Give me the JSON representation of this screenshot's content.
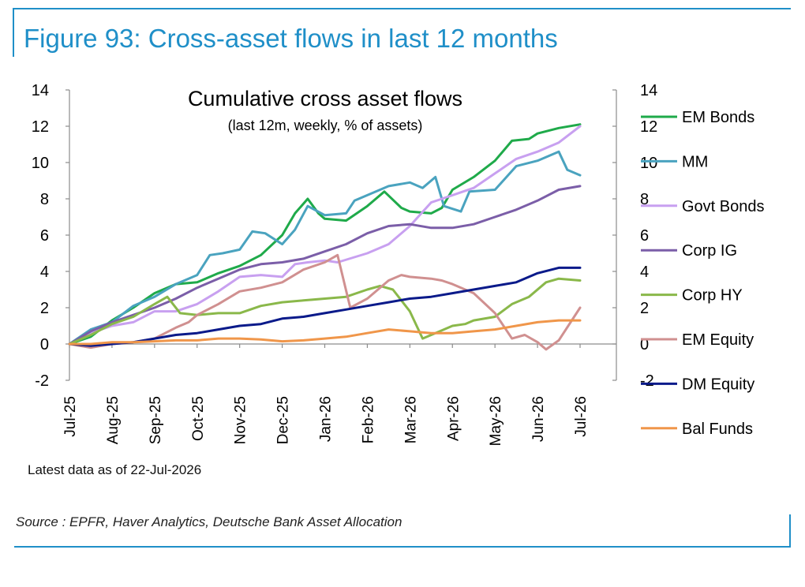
{
  "figure": {
    "title": "Figure 93: Cross-asset flows in last 12 months",
    "latest_note": "Latest data as of 22-Jul-2026",
    "source": "Source : EPFR, Haver Analytics, Deutsche Bank Asset Allocation",
    "accent_color": "#1f8fc8"
  },
  "chart_data": {
    "type": "line",
    "title": "Cumulative cross asset flows",
    "subtitle": "(last 12m, weekly, % of assets)",
    "xlabel": "",
    "ylabel": "",
    "ylim": [
      -2,
      14
    ],
    "yticks": [
      -2,
      0,
      2,
      4,
      6,
      8,
      10,
      12,
      14
    ],
    "secondary_yticks": [
      "-2",
      "0",
      "2",
      "4",
      "6",
      "8",
      "10",
      "12",
      "14"
    ],
    "xticks": [
      "Jul-25",
      "Aug-25",
      "Sep-25",
      "Oct-25",
      "Nov-25",
      "Dec-25",
      "Jan-26",
      "Feb-26",
      "Mar-26",
      "Apr-26",
      "May-26",
      "Jun-26",
      "Jul-26"
    ],
    "x_range": [
      0,
      12
    ],
    "grid": false,
    "legend_position": "right",
    "series": [
      {
        "name": "EM Bonds",
        "color": "#1faa4a",
        "points": [
          [
            0,
            0
          ],
          [
            0.5,
            0.4
          ],
          [
            1,
            1.3
          ],
          [
            1.5,
            2.0
          ],
          [
            2,
            2.8
          ],
          [
            2.5,
            3.3
          ],
          [
            3,
            3.4
          ],
          [
            3.5,
            3.9
          ],
          [
            4,
            4.3
          ],
          [
            4.5,
            4.9
          ],
          [
            5,
            6.0
          ],
          [
            5.3,
            7.2
          ],
          [
            5.6,
            8.0
          ],
          [
            5.85,
            7.2
          ],
          [
            6,
            6.9
          ],
          [
            6.5,
            6.8
          ],
          [
            7,
            7.6
          ],
          [
            7.4,
            8.4
          ],
          [
            7.8,
            7.5
          ],
          [
            8,
            7.3
          ],
          [
            8.5,
            7.2
          ],
          [
            8.75,
            7.5
          ],
          [
            9,
            8.5
          ],
          [
            9.5,
            9.2
          ],
          [
            10,
            10.1
          ],
          [
            10.4,
            11.2
          ],
          [
            10.8,
            11.3
          ],
          [
            11,
            11.6
          ],
          [
            11.5,
            11.9
          ],
          [
            12,
            12.1
          ]
        ]
      },
      {
        "name": "MM",
        "color": "#4aa3bf",
        "points": [
          [
            0,
            0
          ],
          [
            0.5,
            0.8
          ],
          [
            1,
            1.2
          ],
          [
            1.5,
            2.1
          ],
          [
            2,
            2.6
          ],
          [
            2.5,
            3.3
          ],
          [
            3,
            3.8
          ],
          [
            3.3,
            4.9
          ],
          [
            3.6,
            5.0
          ],
          [
            4,
            5.2
          ],
          [
            4.3,
            6.2
          ],
          [
            4.6,
            6.1
          ],
          [
            5,
            5.5
          ],
          [
            5.3,
            6.3
          ],
          [
            5.6,
            7.6
          ],
          [
            6,
            7.1
          ],
          [
            6.5,
            7.2
          ],
          [
            6.7,
            7.9
          ],
          [
            7,
            8.2
          ],
          [
            7.5,
            8.7
          ],
          [
            8,
            8.9
          ],
          [
            8.3,
            8.6
          ],
          [
            8.6,
            9.2
          ],
          [
            8.8,
            7.6
          ],
          [
            9.2,
            7.3
          ],
          [
            9.4,
            8.4
          ],
          [
            10,
            8.5
          ],
          [
            10.5,
            9.8
          ],
          [
            11,
            10.1
          ],
          [
            11.5,
            10.6
          ],
          [
            11.7,
            9.6
          ],
          [
            12,
            9.3
          ]
        ]
      },
      {
        "name": "Govt Bonds",
        "color": "#c8a0f0",
        "points": [
          [
            0,
            0
          ],
          [
            0.5,
            0.6
          ],
          [
            1,
            1.0
          ],
          [
            1.5,
            1.2
          ],
          [
            2,
            1.8
          ],
          [
            2.5,
            1.8
          ],
          [
            3,
            2.2
          ],
          [
            3.5,
            2.9
          ],
          [
            4,
            3.7
          ],
          [
            4.5,
            3.8
          ],
          [
            5,
            3.7
          ],
          [
            5.3,
            4.4
          ],
          [
            5.6,
            4.5
          ],
          [
            6,
            4.6
          ],
          [
            6.3,
            4.5
          ],
          [
            7,
            5.0
          ],
          [
            7.5,
            5.5
          ],
          [
            8,
            6.5
          ],
          [
            8.5,
            7.8
          ],
          [
            8.75,
            8.0
          ],
          [
            9,
            8.2
          ],
          [
            9.5,
            8.6
          ],
          [
            10,
            9.4
          ],
          [
            10.5,
            10.2
          ],
          [
            11,
            10.6
          ],
          [
            11.5,
            11.1
          ],
          [
            12,
            12.0
          ]
        ]
      },
      {
        "name": "Corp IG",
        "color": "#7b5ea8",
        "points": [
          [
            0,
            0
          ],
          [
            0.5,
            0.7
          ],
          [
            1,
            1.2
          ],
          [
            1.5,
            1.6
          ],
          [
            2,
            2.0
          ],
          [
            2.5,
            2.5
          ],
          [
            3,
            3.1
          ],
          [
            3.5,
            3.6
          ],
          [
            4,
            4.1
          ],
          [
            4.5,
            4.4
          ],
          [
            5,
            4.5
          ],
          [
            5.5,
            4.7
          ],
          [
            6,
            5.1
          ],
          [
            6.5,
            5.5
          ],
          [
            7,
            6.1
          ],
          [
            7.5,
            6.5
          ],
          [
            8,
            6.6
          ],
          [
            8.5,
            6.4
          ],
          [
            9,
            6.4
          ],
          [
            9.5,
            6.6
          ],
          [
            10,
            7.0
          ],
          [
            10.5,
            7.4
          ],
          [
            11,
            7.9
          ],
          [
            11.5,
            8.5
          ],
          [
            12,
            8.7
          ]
        ]
      },
      {
        "name": "Corp HY",
        "color": "#8ab84a",
        "points": [
          [
            0,
            0
          ],
          [
            0.5,
            0.5
          ],
          [
            1,
            1.1
          ],
          [
            1.5,
            1.5
          ],
          [
            2,
            2.2
          ],
          [
            2.3,
            2.6
          ],
          [
            2.6,
            1.7
          ],
          [
            3,
            1.6
          ],
          [
            3.5,
            1.7
          ],
          [
            4,
            1.7
          ],
          [
            4.5,
            2.1
          ],
          [
            5,
            2.3
          ],
          [
            5.5,
            2.4
          ],
          [
            6,
            2.5
          ],
          [
            6.5,
            2.6
          ],
          [
            7,
            3.0
          ],
          [
            7.3,
            3.2
          ],
          [
            7.6,
            3.0
          ],
          [
            8,
            1.8
          ],
          [
            8.3,
            0.3
          ],
          [
            8.6,
            0.6
          ],
          [
            9,
            1.0
          ],
          [
            9.3,
            1.1
          ],
          [
            9.5,
            1.3
          ],
          [
            10,
            1.5
          ],
          [
            10.4,
            2.2
          ],
          [
            10.8,
            2.6
          ],
          [
            11.2,
            3.4
          ],
          [
            11.5,
            3.6
          ],
          [
            12,
            3.5
          ]
        ]
      },
      {
        "name": "EM Equity",
        "color": "#d09090",
        "points": [
          [
            0,
            0
          ],
          [
            0.5,
            -0.2
          ],
          [
            1,
            0.0
          ],
          [
            1.5,
            0.1
          ],
          [
            2,
            0.3
          ],
          [
            2.5,
            0.9
          ],
          [
            2.8,
            1.2
          ],
          [
            3,
            1.6
          ],
          [
            3.5,
            2.2
          ],
          [
            4,
            2.9
          ],
          [
            4.5,
            3.1
          ],
          [
            5,
            3.4
          ],
          [
            5.5,
            4.1
          ],
          [
            6,
            4.5
          ],
          [
            6.3,
            4.9
          ],
          [
            6.6,
            2.0
          ],
          [
            7,
            2.5
          ],
          [
            7.5,
            3.5
          ],
          [
            7.8,
            3.8
          ],
          [
            8,
            3.7
          ],
          [
            8.5,
            3.6
          ],
          [
            8.75,
            3.5
          ],
          [
            9,
            3.3
          ],
          [
            9.5,
            2.8
          ],
          [
            10,
            1.7
          ],
          [
            10.4,
            0.3
          ],
          [
            10.7,
            0.5
          ],
          [
            11,
            0.1
          ],
          [
            11.2,
            -0.3
          ],
          [
            11.5,
            0.2
          ],
          [
            12,
            2.0
          ]
        ]
      },
      {
        "name": "DM Equity",
        "color": "#0a1a8a",
        "points": [
          [
            0,
            0
          ],
          [
            0.5,
            -0.1
          ],
          [
            1,
            0.0
          ],
          [
            1.5,
            0.1
          ],
          [
            2,
            0.3
          ],
          [
            2.5,
            0.5
          ],
          [
            3,
            0.6
          ],
          [
            3.5,
            0.8
          ],
          [
            4,
            1.0
          ],
          [
            4.5,
            1.1
          ],
          [
            5,
            1.4
          ],
          [
            5.5,
            1.5
          ],
          [
            6,
            1.7
          ],
          [
            6.5,
            1.9
          ],
          [
            7,
            2.1
          ],
          [
            7.5,
            2.3
          ],
          [
            8,
            2.5
          ],
          [
            8.5,
            2.6
          ],
          [
            9,
            2.8
          ],
          [
            9.5,
            3.0
          ],
          [
            10,
            3.2
          ],
          [
            10.5,
            3.4
          ],
          [
            11,
            3.9
          ],
          [
            11.5,
            4.2
          ],
          [
            12,
            4.2
          ]
        ]
      },
      {
        "name": "Bal Funds",
        "color": "#f0964a",
        "points": [
          [
            0,
            0
          ],
          [
            0.5,
            0.0
          ],
          [
            1,
            0.1
          ],
          [
            1.5,
            0.1
          ],
          [
            2,
            0.15
          ],
          [
            2.5,
            0.2
          ],
          [
            3,
            0.2
          ],
          [
            3.5,
            0.3
          ],
          [
            4,
            0.3
          ],
          [
            4.5,
            0.25
          ],
          [
            5,
            0.15
          ],
          [
            5.5,
            0.2
          ],
          [
            6,
            0.3
          ],
          [
            6.5,
            0.4
          ],
          [
            7,
            0.6
          ],
          [
            7.5,
            0.8
          ],
          [
            8,
            0.7
          ],
          [
            8.5,
            0.6
          ],
          [
            9,
            0.6
          ],
          [
            9.5,
            0.7
          ],
          [
            10,
            0.8
          ],
          [
            10.5,
            1.0
          ],
          [
            11,
            1.2
          ],
          [
            11.5,
            1.3
          ],
          [
            12,
            1.3
          ]
        ]
      }
    ]
  }
}
